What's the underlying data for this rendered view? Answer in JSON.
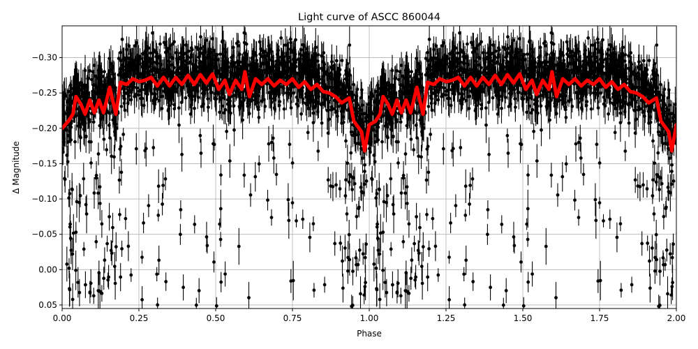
{
  "chart_data": {
    "type": "scatter",
    "title": "Light curve of ASCC 860044",
    "xlabel": "Phase",
    "ylabel": "Δ Magnitude",
    "xlim": [
      0.0,
      2.0
    ],
    "ylim": [
      0.055,
      -0.345
    ],
    "y_inverted": true,
    "grid": true,
    "legend": null,
    "xticks": [
      "0.00",
      "0.25",
      "0.50",
      "0.75",
      "1.00",
      "1.25",
      "1.50",
      "1.75",
      "2.00"
    ],
    "xtick_values": [
      0.0,
      0.25,
      0.5,
      0.75,
      1.0,
      1.25,
      1.5,
      1.75,
      2.0
    ],
    "yticks": [
      "−0.30",
      "−0.25",
      "−0.20",
      "−0.15",
      "−0.10",
      "−0.05",
      "0.00",
      "0.05"
    ],
    "ytick_values": [
      -0.3,
      -0.25,
      -0.2,
      -0.15,
      -0.1,
      -0.05,
      0.0,
      0.05
    ],
    "colors": {
      "data_points": "#000000",
      "model_curve": "#ff0000",
      "grid": "#b0b0b0"
    },
    "series": [
      {
        "name": "observations",
        "kind": "errorbar-scatter",
        "description": "Dense phase-folded photometry (black points with vertical error bars), folded over two periods; bulk between −0.30 and −0.20 with tails down to +0.05",
        "typical_range": [
          -0.33,
          0.05
        ],
        "typical_error": 0.015
      },
      {
        "name": "binned model",
        "kind": "line",
        "x": [
          0.0,
          0.02,
          0.035,
          0.045,
          0.06,
          0.075,
          0.09,
          0.105,
          0.12,
          0.135,
          0.155,
          0.175,
          0.19,
          0.21,
          0.23,
          0.25,
          0.27,
          0.29,
          0.31,
          0.33,
          0.35,
          0.37,
          0.39,
          0.41,
          0.43,
          0.45,
          0.47,
          0.49,
          0.51,
          0.53,
          0.545,
          0.565,
          0.585,
          0.595,
          0.61,
          0.63,
          0.65,
          0.67,
          0.69,
          0.71,
          0.73,
          0.75,
          0.77,
          0.79,
          0.81,
          0.83,
          0.85,
          0.87,
          0.89,
          0.91,
          0.935,
          0.95,
          0.975,
          0.985,
          1.0,
          1.02,
          1.035,
          1.045,
          1.06,
          1.075,
          1.09,
          1.105,
          1.12,
          1.135,
          1.155,
          1.175,
          1.19,
          1.21,
          1.23,
          1.25,
          1.27,
          1.29,
          1.31,
          1.33,
          1.35,
          1.37,
          1.39,
          1.41,
          1.43,
          1.45,
          1.47,
          1.49,
          1.51,
          1.53,
          1.545,
          1.565,
          1.585,
          1.595,
          1.61,
          1.63,
          1.65,
          1.67,
          1.69,
          1.71,
          1.73,
          1.75,
          1.77,
          1.79,
          1.81,
          1.83,
          1.85,
          1.87,
          1.89,
          1.91,
          1.935,
          1.95,
          1.975,
          1.985,
          2.0
        ],
        "y": [
          -0.2,
          -0.21,
          -0.22,
          -0.245,
          -0.235,
          -0.22,
          -0.24,
          -0.222,
          -0.24,
          -0.222,
          -0.258,
          -0.22,
          -0.265,
          -0.262,
          -0.27,
          -0.266,
          -0.268,
          -0.272,
          -0.26,
          -0.272,
          -0.26,
          -0.272,
          -0.262,
          -0.275,
          -0.262,
          -0.276,
          -0.264,
          -0.277,
          -0.255,
          -0.268,
          -0.248,
          -0.268,
          -0.255,
          -0.28,
          -0.245,
          -0.27,
          -0.262,
          -0.27,
          -0.26,
          -0.268,
          -0.262,
          -0.27,
          -0.258,
          -0.266,
          -0.255,
          -0.262,
          -0.252,
          -0.25,
          -0.245,
          -0.236,
          -0.243,
          -0.21,
          -0.195,
          -0.168,
          -0.205,
          -0.21,
          -0.22,
          -0.245,
          -0.235,
          -0.22,
          -0.24,
          -0.222,
          -0.24,
          -0.222,
          -0.258,
          -0.22,
          -0.265,
          -0.262,
          -0.27,
          -0.266,
          -0.268,
          -0.272,
          -0.26,
          -0.272,
          -0.26,
          -0.272,
          -0.262,
          -0.275,
          -0.262,
          -0.276,
          -0.264,
          -0.277,
          -0.255,
          -0.268,
          -0.248,
          -0.268,
          -0.255,
          -0.28,
          -0.245,
          -0.27,
          -0.262,
          -0.27,
          -0.26,
          -0.268,
          -0.262,
          -0.27,
          -0.258,
          -0.266,
          -0.255,
          -0.262,
          -0.252,
          -0.25,
          -0.245,
          -0.236,
          -0.243,
          -0.21,
          -0.195,
          -0.168,
          -0.205
        ]
      }
    ]
  }
}
